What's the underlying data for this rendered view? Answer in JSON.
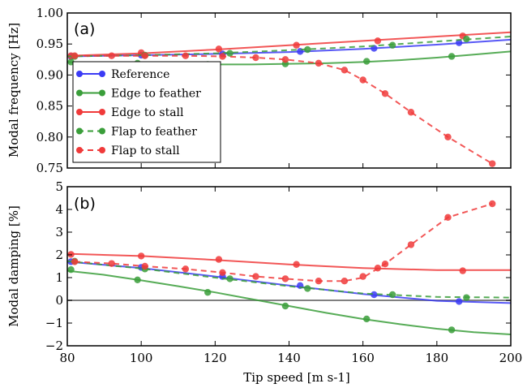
{
  "chart_data": [
    {
      "type": "line",
      "panel_label": "(a)",
      "xlabel": "",
      "ylabel": "Modal frequency [Hz]",
      "xlim": [
        80,
        200
      ],
      "ylim": [
        0.75,
        1.0
      ],
      "xticks": [
        80,
        100,
        120,
        140,
        160,
        180,
        200
      ],
      "yticks": [
        "0.75",
        "0.80",
        "0.85",
        "0.90",
        "0.95",
        "1.00"
      ],
      "ytick_values": [
        0.75,
        0.8,
        0.85,
        0.9,
        0.95,
        1.0
      ],
      "grid": false,
      "legend": {
        "placement": "lower-left",
        "entries": [
          "Reference",
          "Edge to feather",
          "Edge to stall",
          "Flap to feather",
          "Flap to stall"
        ]
      },
      "series": [
        {
          "name": "Reference",
          "color": "#3b3bf5",
          "dash": "solid",
          "line_x": [
            80,
            100,
            120,
            140,
            160,
            180,
            200
          ],
          "line_y": [
            0.93,
            0.932,
            0.934,
            0.937,
            0.942,
            0.949,
            0.957
          ],
          "points_x": [
            81,
            100,
            122,
            143,
            163,
            186
          ],
          "points_y": [
            0.93,
            0.932,
            0.934,
            0.938,
            0.943,
            0.952
          ]
        },
        {
          "name": "Edge to feather",
          "color": "#3a9e3a",
          "dash": "solid",
          "line_x": [
            80,
            90,
            100,
            110,
            120,
            130,
            140,
            150,
            160,
            170,
            180,
            190,
            200
          ],
          "line_y": [
            0.921,
            0.919,
            0.918,
            0.917,
            0.917,
            0.917,
            0.918,
            0.919,
            0.921,
            0.924,
            0.928,
            0.933,
            0.938
          ],
          "points_x": [
            81,
            99,
            118,
            139,
            161,
            184
          ],
          "points_y": [
            0.921,
            0.919,
            0.917,
            0.918,
            0.922,
            0.93
          ]
        },
        {
          "name": "Edge to stall",
          "color": "#f03a3a",
          "dash": "solid",
          "line_x": [
            80,
            100,
            120,
            140,
            160,
            180,
            200
          ],
          "line_y": [
            0.931,
            0.935,
            0.941,
            0.948,
            0.955,
            0.962,
            0.969
          ],
          "points_x": [
            81,
            100,
            121,
            142,
            164,
            187
          ],
          "points_y": [
            0.931,
            0.936,
            0.942,
            0.948,
            0.955,
            0.963
          ]
        },
        {
          "name": "Flap to feather",
          "color": "#3a9e3a",
          "dash": "dashed",
          "line_x": [
            80,
            100,
            120,
            140,
            160,
            180,
            200
          ],
          "line_y": [
            0.93,
            0.932,
            0.935,
            0.94,
            0.946,
            0.954,
            0.962
          ],
          "points_x": [
            82,
            101,
            124,
            145,
            168,
            188
          ],
          "points_y": [
            0.93,
            0.932,
            0.935,
            0.941,
            0.948,
            0.958
          ]
        },
        {
          "name": "Flap to stall",
          "color": "#f03a3a",
          "dash": "dashed",
          "line_x": [
            82,
            92,
            101,
            112,
            122,
            131,
            139,
            148,
            155,
            160,
            166,
            173,
            183,
            195
          ],
          "line_y": [
            0.931,
            0.931,
            0.931,
            0.931,
            0.93,
            0.928,
            0.925,
            0.919,
            0.908,
            0.892,
            0.87,
            0.84,
            0.8,
            0.757
          ],
          "points_x": [
            82,
            92,
            101,
            112,
            122,
            131,
            139,
            148,
            155,
            160,
            166,
            173,
            183,
            195
          ],
          "points_y": [
            0.931,
            0.931,
            0.931,
            0.931,
            0.93,
            0.928,
            0.925,
            0.919,
            0.908,
            0.892,
            0.87,
            0.84,
            0.8,
            0.757
          ]
        }
      ]
    },
    {
      "type": "line",
      "panel_label": "(b)",
      "xlabel": "Tip speed [m s-1]",
      "ylabel": "Modal damping [%]",
      "xlim": [
        80,
        200
      ],
      "ylim": [
        -2,
        5
      ],
      "xticks": [
        80,
        100,
        120,
        140,
        160,
        180,
        200
      ],
      "yticks": [
        "−2",
        "−1",
        "0",
        "1",
        "2",
        "3",
        "4",
        "5"
      ],
      "ytick_values": [
        -2,
        -1,
        0,
        1,
        2,
        3,
        4,
        5
      ],
      "reference_line_y": 0,
      "grid": false,
      "series": [
        {
          "name": "Reference",
          "color": "#3b3bf5",
          "dash": "solid",
          "line_x": [
            80,
            100,
            120,
            140,
            160,
            180,
            200
          ],
          "line_y": [
            1.7,
            1.42,
            1.05,
            0.65,
            0.28,
            -0.02,
            -0.12
          ],
          "points_x": [
            81,
            100,
            122,
            143,
            163,
            186
          ],
          "points_y": [
            1.7,
            1.45,
            1.05,
            0.65,
            0.25,
            -0.05
          ]
        },
        {
          "name": "Edge to feather",
          "color": "#3a9e3a",
          "dash": "solid",
          "line_x": [
            80,
            90,
            100,
            110,
            120,
            130,
            140,
            150,
            160,
            170,
            180,
            190,
            200
          ],
          "line_y": [
            1.3,
            1.12,
            0.88,
            0.62,
            0.35,
            0.05,
            -0.25,
            -0.55,
            -0.82,
            -1.05,
            -1.25,
            -1.4,
            -1.5
          ],
          "points_x": [
            81,
            99,
            118,
            139,
            161,
            184
          ],
          "points_y": [
            1.35,
            0.9,
            0.35,
            -0.25,
            -0.82,
            -1.3
          ]
        },
        {
          "name": "Edge to stall",
          "color": "#f03a3a",
          "dash": "solid",
          "line_x": [
            80,
            100,
            120,
            140,
            160,
            180,
            200
          ],
          "line_y": [
            2.05,
            1.95,
            1.78,
            1.58,
            1.42,
            1.33,
            1.33
          ],
          "points_x": [
            81,
            100,
            121,
            142,
            164,
            187
          ],
          "points_y": [
            2.02,
            1.95,
            1.8,
            1.58,
            1.42,
            1.3
          ]
        },
        {
          "name": "Flap to feather",
          "color": "#3a9e3a",
          "dash": "dashed",
          "line_x": [
            80,
            100,
            120,
            140,
            160,
            180,
            200
          ],
          "line_y": [
            1.72,
            1.4,
            1.0,
            0.62,
            0.3,
            0.15,
            0.12
          ],
          "points_x": [
            82,
            101,
            124,
            145,
            168,
            188
          ],
          "points_y": [
            1.72,
            1.38,
            0.95,
            0.52,
            0.25,
            0.12
          ]
        },
        {
          "name": "Flap to stall",
          "color": "#f03a3a",
          "dash": "dashed",
          "line_x": [
            82,
            92,
            101,
            112,
            122,
            131,
            139,
            148,
            155,
            160,
            166,
            173,
            183,
            195
          ],
          "line_y": [
            1.7,
            1.62,
            1.5,
            1.38,
            1.22,
            1.05,
            0.95,
            0.85,
            0.85,
            1.0,
            1.6,
            2.45,
            3.65,
            4.25
          ],
          "points_x": [
            82,
            92,
            101,
            112,
            122,
            131,
            139,
            148,
            155,
            160,
            166,
            173,
            183,
            195
          ],
          "points_y": [
            1.7,
            1.62,
            1.5,
            1.38,
            1.22,
            1.05,
            0.95,
            0.85,
            0.85,
            1.05,
            1.6,
            2.45,
            3.65,
            4.25
          ]
        }
      ]
    }
  ]
}
